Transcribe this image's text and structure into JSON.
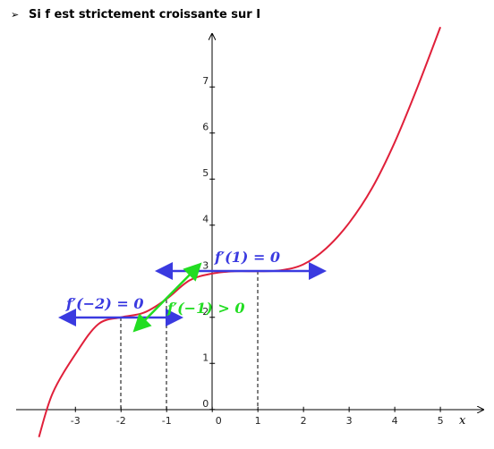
{
  "heading": "Si f est strictement croissante sur I",
  "chart_data": {
    "type": "line",
    "x": [
      -3.8,
      -3.5,
      -3,
      -2.5,
      -2,
      -1.5,
      -1,
      -0.5,
      0,
      0.5,
      1,
      1.5,
      2,
      2.5,
      3,
      3.5,
      4,
      4.5,
      5
    ],
    "series": [
      {
        "color": "#e0203a",
        "values": [
          -0.6,
          0.35,
          1.2,
          1.85,
          2,
          2.1,
          2.4,
          2.8,
          2.95,
          3,
          3,
          3.02,
          3.15,
          3.5,
          4.05,
          4.8,
          5.8,
          7,
          8.3
        ]
      }
    ],
    "xlabel": "x",
    "xlim": [
      -4.3,
      5.94
    ],
    "ylim": [
      -0.82,
      8.15
    ],
    "xticks": [
      -3,
      -2,
      -1,
      0,
      1,
      2,
      3,
      4,
      5
    ],
    "yticks": [
      0,
      1,
      2,
      3,
      4,
      5,
      6,
      7
    ],
    "annotations": [
      "f′(1) = 0",
      "f′(−2) = 0",
      "f′(−1) > 0"
    ]
  }
}
